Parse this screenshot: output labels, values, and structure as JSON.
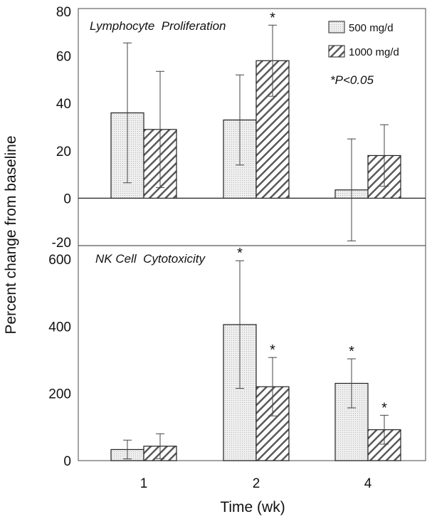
{
  "chart_data": [
    {
      "type": "bar",
      "title": "Lymphocyte  Proliferation",
      "categories": [
        "1",
        "2",
        "4"
      ],
      "ylim": [
        -20,
        80
      ],
      "yticks": [
        80,
        60,
        40,
        20,
        0,
        -20
      ],
      "series": [
        {
          "name": "500 mg/d",
          "values": [
            36,
            33,
            3.5
          ],
          "error": [
            29.5,
            19,
            21.5
          ],
          "significant": [
            false,
            false,
            false
          ]
        },
        {
          "name": "1000 mg/d",
          "values": [
            29,
            58,
            18
          ],
          "error": [
            24.5,
            15,
            13
          ],
          "significant": [
            false,
            true,
            false
          ]
        }
      ],
      "annotation": "*P<0.05",
      "legend_position": "top-right"
    },
    {
      "type": "bar",
      "title": "NK Cell  Cytotoxicity",
      "categories": [
        "1",
        "2",
        "4"
      ],
      "ylim": [
        0,
        640
      ],
      "yticks": [
        600,
        400,
        200,
        0
      ],
      "series": [
        {
          "name": "500 mg/d",
          "values": [
            33,
            405,
            230
          ],
          "error": [
            28,
            190,
            73
          ],
          "significant": [
            false,
            true,
            true
          ]
        },
        {
          "name": "1000 mg/d",
          "values": [
            43,
            220,
            92
          ],
          "error": [
            37,
            87,
            43
          ],
          "significant": [
            false,
            true,
            true
          ]
        }
      ]
    }
  ],
  "ylabel": "Percent change from baseline",
  "xlabel": "Time (wk)",
  "colors": {
    "bar_fill": "#ededed",
    "hatch": "#555555",
    "stroke": "#222222",
    "frame": "#666666"
  }
}
